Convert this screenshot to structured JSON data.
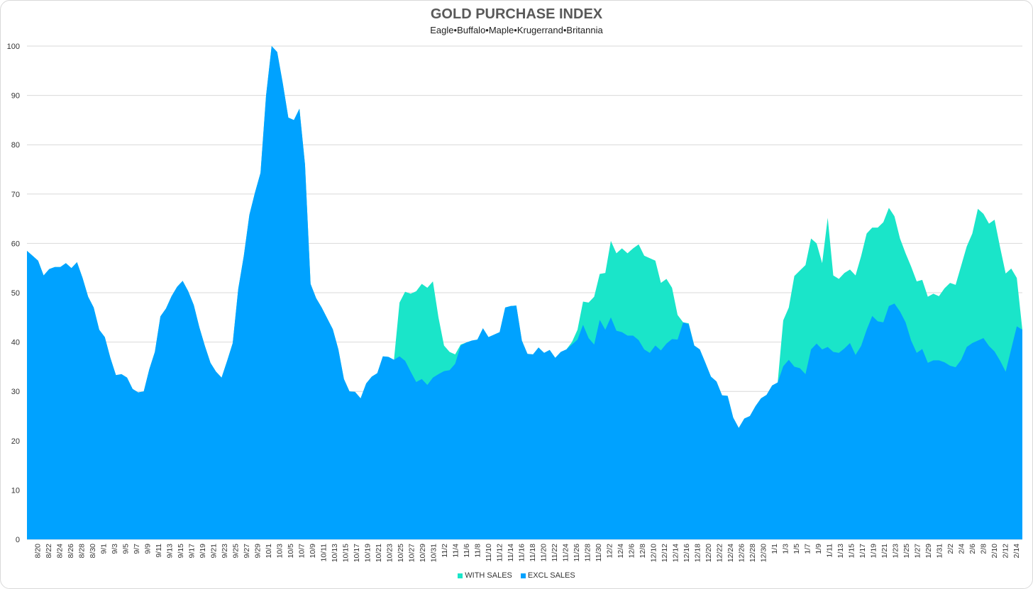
{
  "chart_data": {
    "type": "area",
    "title": "GOLD PURCHASE INDEX",
    "subtitle": "Eagle•Buffalo•Maple•Krugerrand•Britannia",
    "ylim": [
      0,
      100
    ],
    "yticks": [
      0,
      10,
      20,
      30,
      40,
      50,
      60,
      70,
      80,
      90,
      100
    ],
    "grid": true,
    "legend_position": "bottom",
    "x_labels": [
      "8/20",
      "8/22",
      "8/24",
      "8/26",
      "8/28",
      "8/30",
      "9/1",
      "9/3",
      "9/5",
      "9/7",
      "9/9",
      "9/11",
      "9/13",
      "9/15",
      "9/17",
      "9/19",
      "9/21",
      "9/23",
      "9/25",
      "9/27",
      "9/29",
      "10/1",
      "10/3",
      "10/5",
      "10/7",
      "10/9",
      "10/11",
      "10/13",
      "10/15",
      "10/17",
      "10/19",
      "10/21",
      "10/23",
      "10/25",
      "10/27",
      "10/29",
      "10/31",
      "11/2",
      "11/4",
      "11/6",
      "11/8",
      "11/10",
      "11/12",
      "11/14",
      "11/16",
      "11/18",
      "11/20",
      "11/22",
      "11/24",
      "11/26",
      "11/28",
      "11/30",
      "12/2",
      "12/4",
      "12/6",
      "12/8",
      "12/10",
      "12/12",
      "12/14",
      "12/16",
      "12/18",
      "12/20",
      "12/22",
      "12/24",
      "12/26",
      "12/28",
      "12/30",
      "1/1",
      "1/3",
      "1/5",
      "1/7",
      "1/9",
      "1/11",
      "1/13",
      "1/15",
      "1/17",
      "1/19",
      "1/21",
      "1/23",
      "1/25",
      "1/27",
      "1/29",
      "1/31",
      "2/2",
      "2/4",
      "2/6",
      "2/8",
      "2/10",
      "2/12",
      "2/14"
    ],
    "series": [
      {
        "name": "WITH SALES",
        "color": "#1ae5c9",
        "values": [
          58.5,
          57.5,
          56.5,
          53.5,
          54.8,
          55.2,
          55.2,
          56.0,
          55.0,
          56.2,
          53.0,
          49.2,
          47.0,
          42.5,
          41.0,
          36.8,
          33.3,
          33.5,
          32.8,
          30.5,
          29.8,
          30.0,
          34.5,
          38.0,
          45.2,
          46.8,
          49.3,
          51.2,
          52.4,
          50.3,
          47.5,
          43.0,
          39.2,
          35.8,
          34.0,
          32.8,
          36.2,
          39.8,
          50.8,
          57.5,
          65.8,
          70.3,
          74.3,
          90.0,
          100.0,
          98.8,
          92.5,
          85.5,
          85.0,
          87.3,
          76.0,
          51.8,
          48.9,
          47.0,
          44.8,
          42.6,
          38.5,
          32.5,
          30.0,
          29.9,
          28.6,
          31.6,
          33.0,
          33.7,
          37.1,
          37.0,
          36.4,
          48.0,
          50.2,
          49.8,
          50.3,
          51.8,
          51.0,
          52.3,
          45.0,
          39.3,
          38.0,
          37.5,
          39.5,
          39.9,
          40.3,
          40.5,
          42.8,
          41.0,
          41.5,
          42.0,
          47.0,
          47.3,
          47.4,
          40.3,
          37.6,
          37.5,
          38.9,
          37.8,
          38.4,
          36.8,
          38.0,
          38.5,
          40.0,
          42.5,
          48.2,
          48.0,
          49.2,
          53.8,
          54.0,
          60.5,
          58.0,
          59.0,
          58.0,
          59.0,
          59.8,
          57.5,
          57.0,
          56.5,
          52.0,
          52.8,
          51.0,
          45.5,
          44.0,
          43.8,
          39.3,
          38.5,
          35.8,
          33.0,
          32.0,
          29.2,
          29.1,
          24.7,
          22.6,
          24.5,
          25.0,
          27.0,
          28.6,
          29.3,
          31.2,
          31.8,
          44.4,
          47.0,
          53.4,
          54.5,
          55.6,
          61.0,
          60.0,
          56.0,
          65.2,
          53.5,
          52.8,
          54.0,
          54.7,
          53.5,
          57.4,
          62.0,
          63.2,
          63.2,
          64.3,
          67.2,
          65.5,
          61.0,
          58.0,
          55.3,
          52.3,
          52.6,
          49.2,
          49.8,
          49.3,
          50.9,
          52.0,
          51.6,
          55.5,
          59.4,
          62.0,
          67.0,
          66.0,
          64.0,
          64.8,
          59.2,
          53.9,
          54.9,
          53.0,
          42.5
        ]
      },
      {
        "name": "EXCL SALES",
        "color": "#00a2ff",
        "values": [
          58.5,
          57.5,
          56.5,
          53.5,
          54.8,
          55.2,
          55.2,
          56.0,
          55.0,
          56.2,
          53.0,
          49.2,
          47.0,
          42.5,
          41.0,
          36.8,
          33.3,
          33.5,
          32.8,
          30.5,
          29.8,
          30.0,
          34.5,
          38.0,
          45.2,
          46.8,
          49.3,
          51.2,
          52.4,
          50.3,
          47.5,
          43.0,
          39.2,
          35.8,
          34.0,
          32.8,
          36.2,
          39.8,
          50.8,
          57.5,
          65.8,
          70.3,
          74.3,
          90.0,
          100.0,
          98.8,
          92.5,
          85.5,
          85.0,
          87.3,
          76.0,
          51.8,
          48.9,
          47.0,
          44.8,
          42.6,
          38.5,
          32.5,
          30.0,
          29.9,
          28.6,
          31.6,
          33.0,
          33.7,
          37.1,
          37.0,
          36.4,
          37.1,
          36.2,
          34.0,
          31.9,
          32.5,
          31.3,
          32.8,
          33.5,
          34.1,
          34.3,
          35.6,
          39.3,
          39.9,
          40.3,
          40.5,
          42.8,
          41.0,
          41.5,
          42.0,
          47.0,
          47.3,
          47.4,
          40.3,
          37.6,
          37.5,
          38.9,
          37.8,
          38.4,
          36.8,
          38.0,
          38.5,
          39.5,
          40.5,
          43.5,
          40.8,
          39.5,
          44.5,
          42.5,
          45.0,
          42.3,
          42.0,
          41.3,
          41.3,
          40.4,
          38.5,
          37.8,
          39.3,
          38.3,
          39.7,
          40.6,
          40.5,
          44.0,
          43.6,
          39.3,
          38.5,
          35.8,
          33.0,
          32.0,
          29.2,
          29.1,
          24.7,
          22.6,
          24.5,
          25.0,
          27.0,
          28.6,
          29.3,
          31.2,
          31.8,
          35.1,
          36.4,
          35.0,
          34.7,
          33.5,
          38.5,
          39.7,
          38.5,
          39.0,
          38.0,
          37.8,
          38.7,
          39.8,
          37.4,
          39.2,
          42.5,
          45.3,
          44.2,
          44.0,
          47.3,
          47.8,
          46.2,
          44.0,
          40.3,
          37.8,
          38.6,
          35.8,
          36.3,
          36.3,
          35.9,
          35.2,
          34.9,
          36.4,
          39.0,
          39.8,
          40.3,
          40.8,
          39.2,
          38.1,
          36.2,
          34.0,
          38.6,
          43.2,
          42.5
        ]
      }
    ]
  }
}
